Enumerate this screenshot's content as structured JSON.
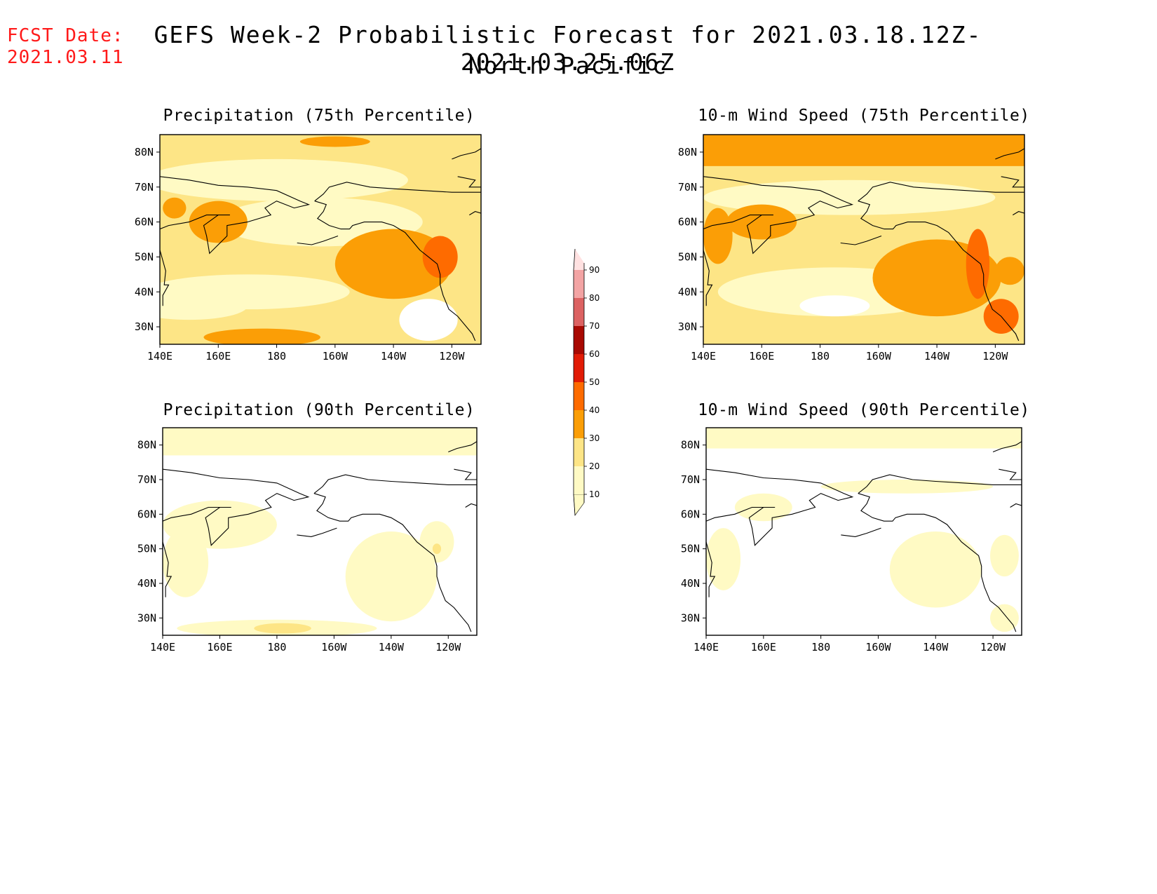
{
  "header": {
    "fcst_label": "FCST Date:",
    "fcst_date": "2021.03.11",
    "title": "GEFS Week-2 Probabilistic Forecast for 2021.03.18.12Z-2021.03.25.06Z",
    "subtitle": "North Pacific"
  },
  "axes": {
    "lon_labels": [
      "140E",
      "160E",
      "180",
      "160W",
      "140W",
      "120W"
    ],
    "lat_labels": [
      "80N",
      "70N",
      "60N",
      "50N",
      "40N",
      "30N"
    ]
  },
  "colorbar": {
    "levels": [
      "10",
      "20",
      "30",
      "40",
      "50",
      "60",
      "70",
      "80",
      "90"
    ],
    "colors": [
      "#fffac4",
      "#fde586",
      "#fb9e06",
      "#fe6b00",
      "#e11b05",
      "#a80902",
      "#dc6262",
      "#f3a4a4",
      "#ffe1e1"
    ]
  },
  "panels": [
    {
      "title": "Precipitation (75th Percentile)",
      "intensity": "high-precip"
    },
    {
      "title": "10-m Wind Speed (75th Percentile)",
      "intensity": "high-wind"
    },
    {
      "title": "Precipitation (90th Percentile)",
      "intensity": "low-precip"
    },
    {
      "title": "10-m Wind Speed (90th Percentile)",
      "intensity": "low-wind"
    }
  ]
}
